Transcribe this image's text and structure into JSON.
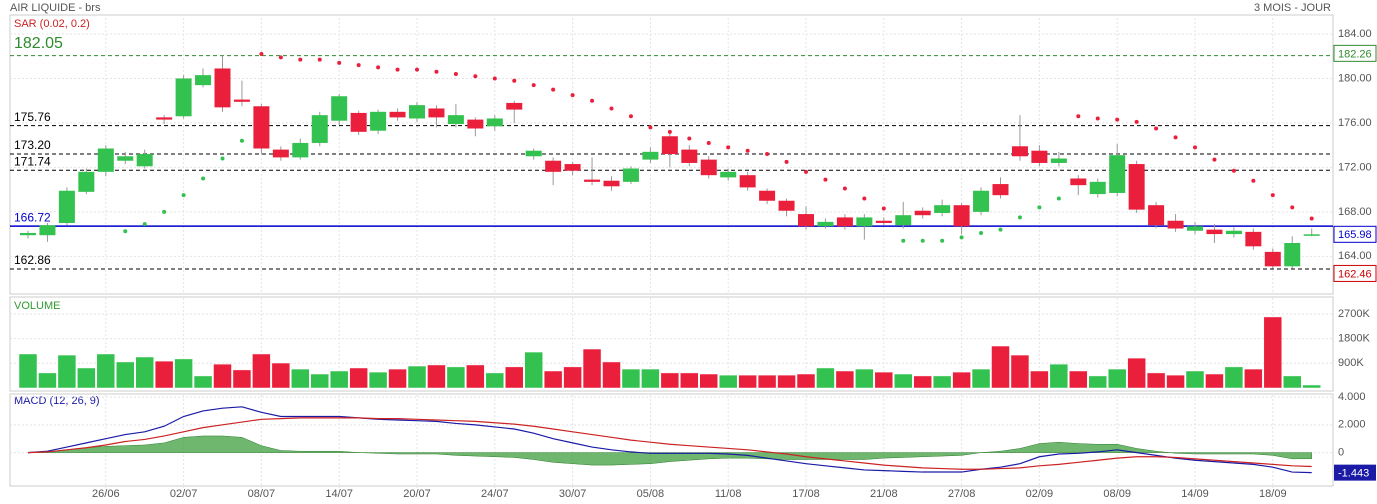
{
  "chart_data": [
    {
      "type": "candlestick",
      "title": "AIR LIQUIDE - brs",
      "period": "3 MOIS - JOUR",
      "indicator": "SAR (0.02, 0.2)",
      "categories": [
        null,
        null,
        null,
        null,
        "26/06",
        null,
        null,
        null,
        "02/07",
        null,
        null,
        null,
        "08/07",
        null,
        null,
        null,
        "14/07",
        null,
        null,
        null,
        "20/07",
        null,
        null,
        null,
        "24/07",
        null,
        null,
        null,
        "30/07",
        null,
        null,
        null,
        "05/08",
        null,
        null,
        null,
        "11/08",
        null,
        null,
        null,
        "17/08",
        null,
        null,
        null,
        "21/08",
        null,
        null,
        null,
        "27/08",
        null,
        null,
        null,
        "02/09",
        null,
        null,
        null,
        "08/09",
        null,
        null,
        null,
        "14/09",
        null,
        null,
        null,
        "18/09",
        null,
        null
      ],
      "open": [
        165.9,
        165.9,
        167.0,
        169.8,
        171.6,
        172.6,
        172.1,
        176.5,
        176.6,
        179.4,
        180.9,
        178.1,
        177.5,
        173.6,
        172.9,
        174.2,
        176.2,
        176.9,
        175.3,
        177.0,
        176.4,
        177.3,
        175.9,
        176.3,
        175.7,
        177.8,
        173.0,
        172.6,
        172.3,
        170.9,
        170.8,
        170.7,
        172.7,
        174.8,
        173.6,
        172.7,
        171.1,
        171.3,
        169.9,
        169.0,
        167.8,
        166.7,
        167.5,
        166.7,
        167.2,
        166.8,
        168.1,
        167.9,
        168.6,
        168.0,
        170.5,
        173.9,
        173.5,
        172.4,
        171.0,
        169.6,
        169.7,
        172.3,
        168.6,
        167.2,
        166.3,
        166.4,
        166.0,
        166.2,
        164.4,
        163.1,
        165.98
      ],
      "high": [
        166.3,
        167.0,
        170.2,
        171.9,
        174.0,
        173.4,
        173.6,
        176.7,
        180.3,
        180.9,
        182.1,
        179.8,
        177.7,
        173.9,
        174.6,
        177.0,
        178.6,
        177.1,
        177.2,
        177.3,
        177.9,
        177.6,
        177.7,
        176.5,
        176.7,
        178.0,
        173.7,
        172.9,
        172.5,
        172.9,
        171.2,
        172.1,
        173.8,
        175.1,
        174.0,
        173.0,
        171.9,
        171.6,
        170.1,
        169.2,
        168.5,
        167.4,
        167.8,
        167.8,
        167.5,
        168.9,
        168.4,
        169.1,
        168.8,
        170.2,
        171.1,
        176.7,
        174.0,
        173.4,
        171.3,
        171.0,
        174.1,
        172.6,
        168.9,
        167.8,
        167.1,
        166.9,
        166.6,
        166.5,
        164.7,
        165.8,
        166.5
      ],
      "low": [
        165.6,
        165.3,
        166.8,
        169.6,
        171.2,
        172.3,
        171.9,
        175.9,
        176.4,
        179.2,
        177.0,
        177.5,
        173.2,
        172.6,
        172.7,
        173.9,
        175.8,
        174.9,
        175.0,
        176.2,
        176.1,
        175.6,
        175.6,
        174.8,
        175.3,
        176.0,
        172.7,
        170.4,
        171.3,
        170.4,
        169.9,
        170.5,
        172.4,
        172.0,
        172.1,
        171.0,
        170.8,
        169.9,
        168.7,
        167.6,
        166.4,
        166.5,
        166.4,
        165.5,
        166.8,
        166.5,
        167.4,
        167.6,
        166.0,
        167.7,
        169.2,
        172.6,
        172.1,
        172.1,
        169.5,
        169.3,
        169.4,
        167.9,
        166.5,
        166.2,
        166.0,
        165.2,
        165.7,
        164.6,
        162.9,
        162.9,
        165.8
      ],
      "close": [
        166.1,
        166.8,
        169.9,
        171.6,
        173.7,
        173.0,
        173.2,
        176.3,
        180.0,
        180.3,
        177.4,
        177.9,
        173.7,
        172.9,
        174.2,
        176.7,
        178.4,
        175.2,
        177.0,
        176.5,
        177.6,
        176.5,
        176.7,
        175.5,
        176.4,
        177.2,
        173.5,
        171.6,
        171.7,
        170.7,
        170.3,
        171.9,
        173.4,
        173.2,
        172.4,
        171.3,
        171.6,
        170.2,
        169.0,
        168.1,
        166.7,
        167.1,
        166.7,
        167.5,
        167.0,
        167.7,
        167.7,
        168.6,
        166.7,
        169.9,
        169.5,
        173.0,
        172.4,
        172.8,
        170.4,
        170.7,
        173.1,
        168.2,
        166.8,
        166.5,
        166.7,
        166.0,
        166.3,
        164.9,
        163.1,
        165.2,
        165.98
      ],
      "sar": [
        null,
        null,
        null,
        null,
        null,
        166.25,
        166.9,
        168.0,
        169.5,
        171.0,
        172.8,
        174.4,
        182.2,
        181.9,
        181.7,
        181.7,
        181.4,
        181.2,
        181.0,
        180.8,
        180.8,
        180.6,
        180.4,
        180.2,
        180.0,
        179.8,
        179.4,
        179.0,
        178.5,
        178.0,
        177.3,
        176.6,
        175.6,
        175.2,
        174.6,
        174.2,
        173.8,
        173.5,
        173.2,
        172.5,
        171.6,
        170.9,
        170.1,
        169.2,
        168.3,
        165.4,
        165.4,
        165.4,
        165.7,
        166.1,
        166.4,
        167.5,
        168.4,
        169.2,
        176.6,
        176.4,
        176.3,
        176.1,
        175.5,
        174.7,
        173.8,
        172.7,
        171.7,
        170.8,
        169.5,
        168.4,
        167.4
      ],
      "up_color": "#33c14f",
      "down_color": "#ea1f3c",
      "ylim": [
        160.7,
        185.8
      ],
      "yticks": [
        {
          "value": 164,
          "label": "164.00"
        },
        {
          "value": 168,
          "label": "168.00"
        },
        {
          "value": 172,
          "label": "172.00"
        },
        {
          "value": 176,
          "label": "176.00"
        },
        {
          "value": 180,
          "label": "180.00"
        },
        {
          "value": 184,
          "label": "184.00"
        }
      ],
      "grid": true,
      "levels": [
        {
          "value": 182.05,
          "color": "#2e8b2e",
          "style": "dashed"
        },
        {
          "value": 175.76,
          "color": "#000000",
          "style": "dashed"
        },
        {
          "value": 173.2,
          "label": "173.20",
          "color": "#000000",
          "style": "dashed"
        },
        {
          "value": 171.74,
          "color": "#000000",
          "style": "dashed"
        },
        {
          "value": 166.72,
          "color": "#0000cc",
          "style": "solid"
        },
        {
          "value": 162.86,
          "color": "#000000",
          "style": "dashed"
        }
      ],
      "price_tags": [
        {
          "value": 182.26,
          "color": "#2e8b2e"
        },
        {
          "value": 165.98,
          "color": "#0000cc"
        },
        {
          "value": 162.46,
          "color": "#cc0000"
        }
      ]
    },
    {
      "type": "bar",
      "title": "VOLUME",
      "values": [
        1240000,
        550000,
        1200000,
        730000,
        1240000,
        950000,
        1130000,
        980000,
        1060000,
        440000,
        870000,
        660000,
        1240000,
        910000,
        690000,
        510000,
        620000,
        730000,
        580000,
        690000,
        800000,
        840000,
        770000,
        840000,
        550000,
        770000,
        1310000,
        620000,
        770000,
        1420000,
        950000,
        690000,
        690000,
        550000,
        550000,
        510000,
        470000,
        470000,
        470000,
        470000,
        510000,
        730000,
        620000,
        690000,
        580000,
        510000,
        440000,
        440000,
        580000,
        690000,
        1530000,
        1200000,
        620000,
        870000,
        620000,
        440000,
        690000,
        1090000,
        550000,
        470000,
        620000,
        510000,
        770000,
        690000,
        2590000,
        440000,
        110000
      ],
      "ylim": [
        0,
        3280000
      ],
      "yticks": [
        {
          "value": 900000,
          "label": "900K"
        },
        {
          "value": 1800000,
          "label": "1800K"
        },
        {
          "value": 2700000,
          "label": "2700K"
        }
      ]
    },
    {
      "type": "line",
      "title": "MACD (12, 26, 9)",
      "series": [
        {
          "color": "#1a1aa6",
          "values": [
            0,
            0.1,
            0.4,
            0.7,
            1.0,
            1.3,
            1.5,
            1.9,
            2.6,
            3.0,
            3.2,
            3.3,
            2.9,
            2.6,
            2.6,
            2.6,
            2.6,
            2.5,
            2.4,
            2.35,
            2.3,
            2.25,
            2.1,
            2.0,
            1.85,
            1.7,
            1.4,
            1.0,
            0.7,
            0.4,
            0.2,
            0.05,
            -0.05,
            -0.05,
            -0.05,
            -0.05,
            -0.1,
            -0.2,
            -0.4,
            -0.6,
            -0.8,
            -0.95,
            -1.1,
            -1.25,
            -1.3,
            -1.35,
            -1.4,
            -1.4,
            -1.4,
            -1.2,
            -1.05,
            -0.8,
            -0.3,
            -0.1,
            -0.05,
            0.05,
            0.2,
            0.0,
            -0.2,
            -0.4,
            -0.55,
            -0.65,
            -0.75,
            -0.85,
            -1.05,
            -1.4,
            -1.443
          ]
        },
        {
          "color": "#cc2222",
          "values": [
            0,
            0.05,
            0.2,
            0.35,
            0.55,
            0.8,
            0.95,
            1.2,
            1.5,
            1.8,
            2.0,
            2.2,
            2.4,
            2.45,
            2.5,
            2.5,
            2.5,
            2.5,
            2.45,
            2.45,
            2.4,
            2.35,
            2.3,
            2.25,
            2.15,
            2.05,
            1.9,
            1.7,
            1.5,
            1.3,
            1.1,
            0.9,
            0.75,
            0.6,
            0.5,
            0.4,
            0.3,
            0.2,
            0.05,
            -0.1,
            -0.3,
            -0.45,
            -0.6,
            -0.75,
            -0.9,
            -1.0,
            -1.1,
            -1.15,
            -1.2,
            -1.2,
            -1.15,
            -1.1,
            -0.95,
            -0.85,
            -0.7,
            -0.55,
            -0.4,
            -0.3,
            -0.3,
            -0.35,
            -0.45,
            -0.55,
            -0.65,
            -0.75,
            -0.85,
            -0.95,
            -1.0
          ]
        }
      ],
      "histogram": {
        "color": "#3f9f3f",
        "values": [
          0,
          0.05,
          0.2,
          0.35,
          0.45,
          0.5,
          0.55,
          0.7,
          1.1,
          1.2,
          1.2,
          1.1,
          0.5,
          0.15,
          0.1,
          0.1,
          0.1,
          0,
          -0.05,
          -0.1,
          -0.1,
          -0.1,
          -0.2,
          -0.25,
          -0.3,
          -0.35,
          -0.5,
          -0.7,
          -0.8,
          -0.9,
          -0.9,
          -0.85,
          -0.8,
          -0.65,
          -0.55,
          -0.45,
          -0.4,
          -0.4,
          -0.45,
          -0.5,
          -0.5,
          -0.5,
          -0.5,
          -0.5,
          -0.4,
          -0.35,
          -0.3,
          -0.25,
          -0.2,
          0,
          0.1,
          0.3,
          0.65,
          0.75,
          0.65,
          0.6,
          0.6,
          0.3,
          0.1,
          -0.05,
          -0.1,
          -0.1,
          -0.1,
          -0.1,
          -0.2,
          -0.45,
          -0.443
        ]
      },
      "ylim": [
        -2.55,
        4.15
      ],
      "yticks": [
        0,
        {
          "value": 2,
          "label": "2.000"
        },
        {
          "value": 4,
          "label": "4.000"
        }
      ],
      "last_tag": {
        "value": -1.443,
        "color": "#1a1aa6"
      }
    }
  ]
}
